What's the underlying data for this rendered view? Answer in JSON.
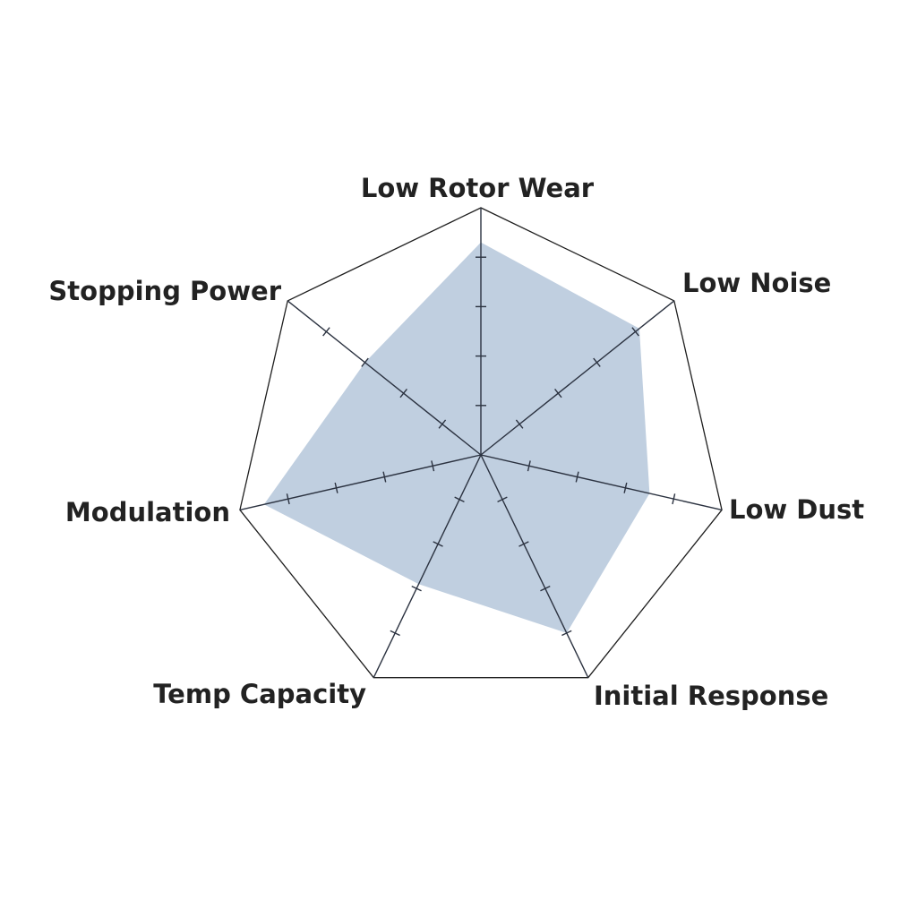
{
  "chart_data": {
    "type": "radar",
    "title": "",
    "categories": [
      "Low Rotor Wear",
      "Low Noise",
      "Low Dust",
      "Initial Response",
      "Temp Capacity",
      "Modulation",
      "Stopping Power"
    ],
    "values": [
      4.3,
      4.1,
      3.5,
      4.0,
      2.9,
      4.5,
      3.0
    ],
    "range": [
      0,
      5
    ],
    "ticks_per_axis": 4,
    "grid": "outer polygon only",
    "colors": {
      "fill": "#c0cfe0",
      "axis": "#2b3240",
      "outline": "#1e1e1e",
      "label": "#222222"
    }
  }
}
